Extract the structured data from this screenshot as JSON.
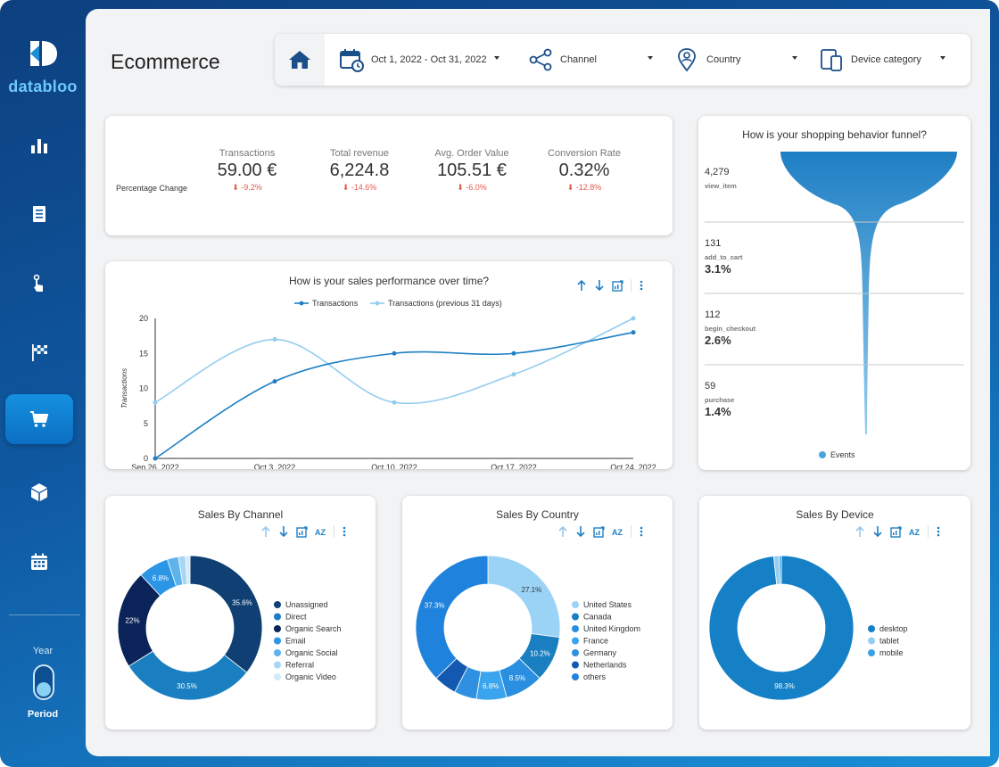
{
  "brand": {
    "name": "databloo"
  },
  "page": {
    "title": "Ecommerce"
  },
  "filters": {
    "date_range": "Oct 1, 2022 - Oct 31, 2022",
    "channel": "Channel",
    "country": "Country",
    "device": "Device category"
  },
  "sidebar": {
    "items": [
      {
        "name": "bar-chart-icon"
      },
      {
        "name": "document-icon"
      },
      {
        "name": "pointer-hand-icon"
      },
      {
        "name": "checkered-flag-icon"
      },
      {
        "name": "shopping-cart-icon",
        "active": true
      },
      {
        "name": "package-icon"
      },
      {
        "name": "calendar-icon"
      }
    ],
    "toggle_top_label": "Year",
    "toggle_bottom_label": "Period"
  },
  "kpis": {
    "row_label": "Percentage Change",
    "items": [
      {
        "label": "Transactions",
        "value": "59.00 €",
        "change": "-9.2%"
      },
      {
        "label": "Total revenue",
        "value": "6,224.8",
        "change": "-14.6%"
      },
      {
        "label": "Avg. Order Value",
        "value": "105.51 €",
        "change": "-6.0%"
      },
      {
        "label": "Conversion Rate",
        "value": "0.32%",
        "change": "-12.8%"
      }
    ]
  },
  "colors": {
    "primary": "#1f7fc4",
    "light": "#93cdef",
    "dark_navy": "#0b2a5b",
    "negative": "#e05a4f"
  },
  "chart_data": [
    {
      "type": "line",
      "title": "How is your sales performance over time?",
      "ylabel": "Transactions",
      "xlabel": "",
      "x": [
        "Sep 26, 2022",
        "Oct 3, 2022",
        "Oct 10, 2022",
        "Oct 17, 2022",
        "Oct 24, 2022"
      ],
      "ylim": [
        0,
        20
      ],
      "yticks": [
        "0",
        "5",
        "10",
        "15",
        "20"
      ],
      "series": [
        {
          "name": "Transactions",
          "values": [
            0,
            11,
            15,
            15,
            18
          ],
          "color": "#1f7fc4"
        },
        {
          "name": "Transactions (previous 31 days)",
          "values": [
            8,
            17,
            8,
            12,
            20
          ],
          "color": "#93cdef"
        }
      ],
      "legend": "top"
    },
    {
      "type": "funnel",
      "title": "How is your shopping behavior funnel?",
      "stages": [
        {
          "count": "4,279",
          "name": "view_item",
          "pct": ""
        },
        {
          "count": "131",
          "name": "add_to_cart",
          "pct": "3.1%"
        },
        {
          "count": "112",
          "name": "begin_checkout",
          "pct": "2.6%"
        },
        {
          "count": "59",
          "name": "purchase",
          "pct": "1.4%"
        }
      ],
      "legend": [
        "Events"
      ]
    },
    {
      "type": "pie",
      "title": "Sales By Channel",
      "slices": [
        {
          "name": "Unassigned",
          "value": 35.6,
          "label": "35.6%",
          "color": "#0f3f73"
        },
        {
          "name": "Direct",
          "value": 30.5,
          "label": "30.5%",
          "color": "#1a7fc1"
        },
        {
          "name": "Organic Search",
          "value": 22,
          "label": "22%",
          "color": "#0a2358"
        },
        {
          "name": "Email",
          "value": 6.8,
          "label": "6.8%",
          "color": "#2b95e6"
        },
        {
          "name": "Organic Social",
          "value": 2.5,
          "label": "",
          "color": "#5fb3ec"
        },
        {
          "name": "Referral",
          "value": 1.6,
          "label": "",
          "color": "#a6d6f4"
        },
        {
          "name": "Organic Video",
          "value": 1.0,
          "label": "",
          "color": "#d2ebfa"
        }
      ]
    },
    {
      "type": "pie",
      "title": "Sales By Country",
      "slices": [
        {
          "name": "United States",
          "value": 27.1,
          "label": "27.1%",
          "color": "#9ad3f5"
        },
        {
          "name": "Canada",
          "value": 10.2,
          "label": "10.2%",
          "color": "#1a7fc1"
        },
        {
          "name": "United Kingdom",
          "value": 8.5,
          "label": "8.5%",
          "color": "#2a8fe0"
        },
        {
          "name": "France",
          "value": 6.8,
          "label": "6.8%",
          "color": "#3aa4ee"
        },
        {
          "name": "Germany",
          "value": 5.0,
          "label": "",
          "color": "#2f8fe0"
        },
        {
          "name": "Netherlands",
          "value": 5.1,
          "label": "",
          "color": "#1459b0"
        },
        {
          "name": "others",
          "value": 37.3,
          "label": "37.3%",
          "color": "#1f82dc"
        }
      ]
    },
    {
      "type": "pie",
      "title": "Sales By Device",
      "slices": [
        {
          "name": "desktop",
          "value": 98.3,
          "label": "98.3%",
          "color": "#1580c6"
        },
        {
          "name": "tablet",
          "value": 1.2,
          "label": "",
          "color": "#93cdef"
        },
        {
          "name": "mobile",
          "value": 0.5,
          "label": "",
          "color": "#3aa0e6"
        }
      ]
    }
  ]
}
